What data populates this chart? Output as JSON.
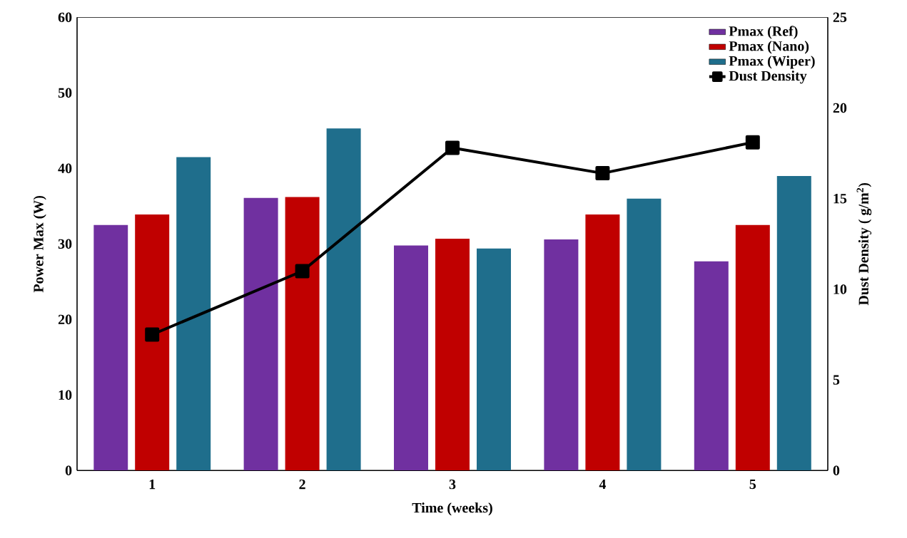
{
  "chart_data": {
    "type": "bar",
    "xlabel": "Time (weeks)",
    "ylabel": "Power Max (W)",
    "y2label": "Dust Density ( g/m$^{2}$)",
    "categories": [
      "1",
      "2",
      "3",
      "4",
      "5"
    ],
    "series": [
      {
        "name": "Pmax (Ref)",
        "color": "#7030a0",
        "values": [
          32.5,
          36.1,
          29.8,
          30.6,
          27.7
        ]
      },
      {
        "name": "Pmax (Nano)",
        "color": "#c00000",
        "values": [
          33.9,
          36.2,
          30.7,
          33.9,
          32.5
        ]
      },
      {
        "name": "Pmax (Wiper)",
        "color": "#1f6e8c",
        "values": [
          41.5,
          45.3,
          29.4,
          36.0,
          39.0
        ]
      },
      {
        "name": "Dust Density",
        "color": "#000000",
        "type": "line",
        "axis": "y2",
        "marker": "square",
        "values": [
          7.5,
          11.0,
          17.8,
          16.4,
          18.1
        ]
      }
    ],
    "ylim": [
      0,
      60
    ],
    "yticks": [
      0,
      10,
      20,
      30,
      40,
      50,
      60
    ],
    "y2lim": [
      0,
      25
    ],
    "y2ticks": [
      0,
      5,
      10,
      15,
      20,
      25
    ],
    "legend": "top right"
  }
}
